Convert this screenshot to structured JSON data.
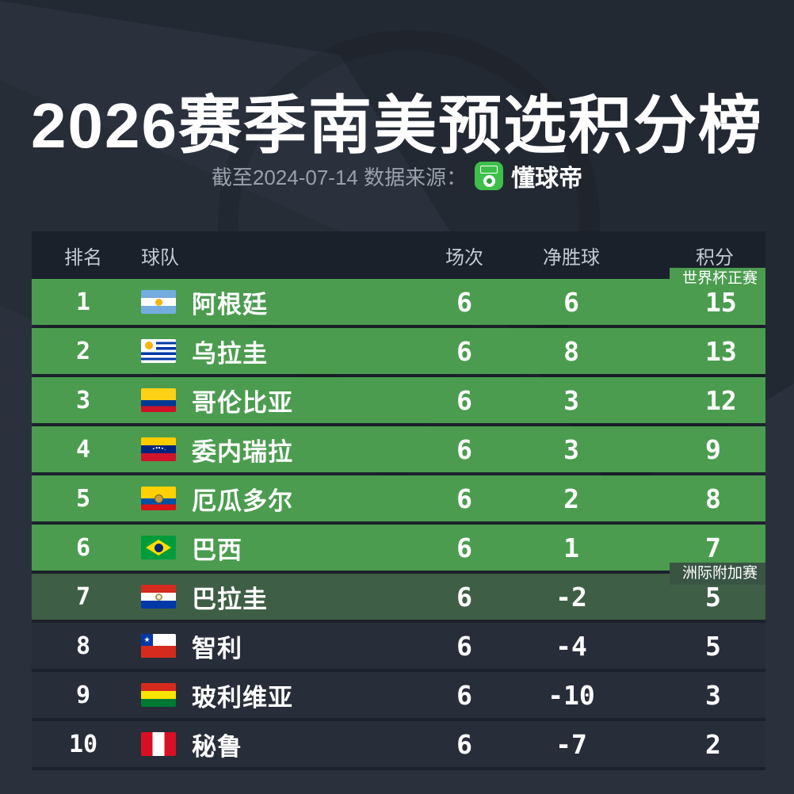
{
  "page": {
    "background_color": "#2a313d",
    "decor_color": "#232933"
  },
  "header": {
    "title": "2026赛季南美预选积分榜",
    "subtitle_prefix": "截至2024-07-14 数据来源：",
    "source_name": "懂球帝",
    "source_icon": "dongqiudi-app-icon",
    "source_icon_color": "#3dbf4a"
  },
  "table": {
    "columns": [
      "排名",
      "球队",
      "场次",
      "净胜球",
      "积分"
    ],
    "tags": {
      "world_cup": "世界杯正赛",
      "playoff": "洲际附加赛"
    },
    "colors": {
      "qualify_row_green": "#4b9c4f",
      "playoff_row_green": "#3f5e46",
      "dark_row": "#272d39",
      "header_bar": "#1a212b"
    },
    "rows": [
      {
        "rank": "1",
        "team": "阿根廷",
        "flag": "argentina",
        "played": "6",
        "gd": "6",
        "points": "15",
        "zone": "qualify",
        "tag": "world_cup"
      },
      {
        "rank": "2",
        "team": "乌拉圭",
        "flag": "uruguay",
        "played": "6",
        "gd": "8",
        "points": "13",
        "zone": "qualify"
      },
      {
        "rank": "3",
        "team": "哥伦比亚",
        "flag": "colombia",
        "played": "6",
        "gd": "3",
        "points": "12",
        "zone": "qualify"
      },
      {
        "rank": "4",
        "team": "委内瑞拉",
        "flag": "venezuela",
        "played": "6",
        "gd": "3",
        "points": "9",
        "zone": "qualify"
      },
      {
        "rank": "5",
        "team": "厄瓜多尔",
        "flag": "ecuador",
        "played": "6",
        "gd": "2",
        "points": "8",
        "zone": "qualify"
      },
      {
        "rank": "6",
        "team": "巴西",
        "flag": "brazil",
        "played": "6",
        "gd": "1",
        "points": "7",
        "zone": "qualify"
      },
      {
        "rank": "7",
        "team": "巴拉圭",
        "flag": "paraguay",
        "played": "6",
        "gd": "-2",
        "points": "5",
        "zone": "playoff",
        "tag": "playoff"
      },
      {
        "rank": "8",
        "team": "智利",
        "flag": "chile",
        "played": "6",
        "gd": "-4",
        "points": "5",
        "zone": "none"
      },
      {
        "rank": "9",
        "team": "玻利维亚",
        "flag": "bolivia",
        "played": "6",
        "gd": "-10",
        "points": "3",
        "zone": "none"
      },
      {
        "rank": "10",
        "team": "秘鲁",
        "flag": "peru",
        "played": "6",
        "gd": "-7",
        "points": "2",
        "zone": "none"
      }
    ]
  }
}
